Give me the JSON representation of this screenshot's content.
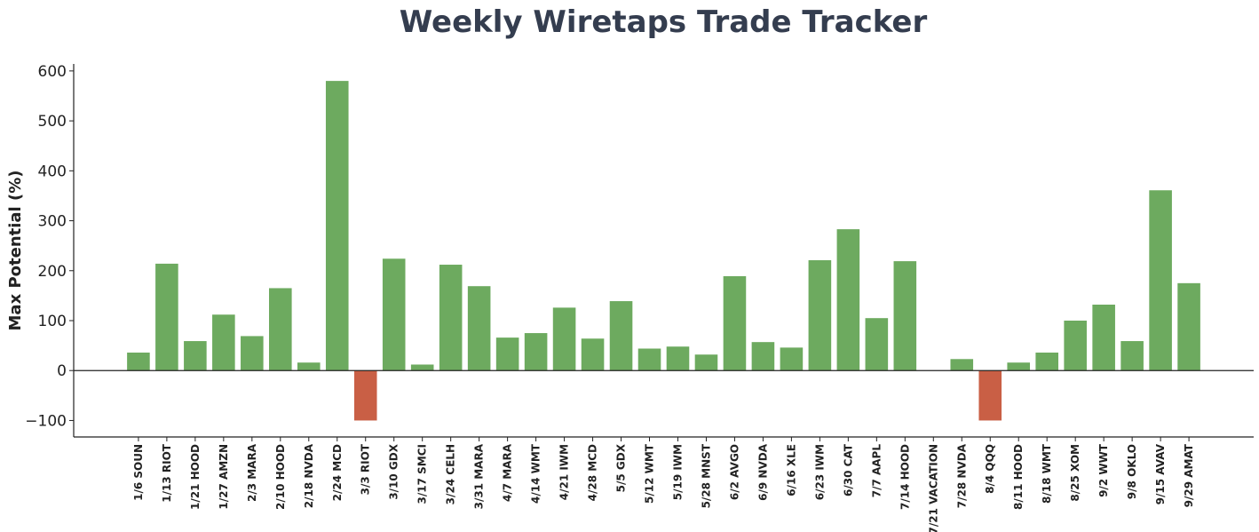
{
  "chart_data": {
    "type": "bar",
    "title": "Weekly Wiretaps Trade Tracker",
    "xlabel": "",
    "ylabel": "Max Potential (%)",
    "ylim": [
      -133,
      614
    ],
    "yticks": [
      -100,
      0,
      100,
      200,
      300,
      400,
      500,
      600
    ],
    "ytick_labels": [
      "−100",
      "0",
      "100",
      "200",
      "300",
      "400",
      "500",
      "600"
    ],
    "grid": false,
    "colors": {
      "positive": "#6daa5f",
      "negative": "#c95f45",
      "title": "#343d4f"
    },
    "categories": [
      "1/6 SOUN",
      "1/13 RIOT",
      "1/21 HOOD",
      "1/27 AMZN",
      "2/3 MARA",
      "2/10 HOOD",
      "2/18 NVDA",
      "2/24 MCD",
      "3/3 RIOT",
      "3/10 GDX",
      "3/17 SMCI",
      "3/24 CELH",
      "3/31 MARA",
      "4/7 MARA",
      "4/14 WMT",
      "4/21 IWM",
      "4/28 MCD",
      "5/5 GDX",
      "5/12 WMT",
      "5/19 IWM",
      "5/28 MNST",
      "6/2 AVGO",
      "6/9 NVDA",
      "6/16 XLE",
      "6/23 IWM",
      "6/30 CAT",
      "7/7 AAPL",
      "7/14 HOOD",
      "7/21 VACATION",
      "7/28 NVDA",
      "8/4 QQQ",
      "8/11 HOOD",
      "8/18 WMT",
      "8/25 XOM",
      "9/2 WWT",
      "9/8 OKLO",
      "9/15 AVAV",
      "9/29 AMAT"
    ],
    "values": [
      36,
      214,
      59,
      112,
      69,
      165,
      16,
      580,
      -100,
      224,
      12,
      212,
      169,
      66,
      75,
      126,
      64,
      139,
      44,
      48,
      32,
      189,
      57,
      46,
      221,
      283,
      105,
      219,
      0,
      23,
      -100,
      16,
      36,
      100,
      132,
      59,
      361,
      175
    ]
  }
}
